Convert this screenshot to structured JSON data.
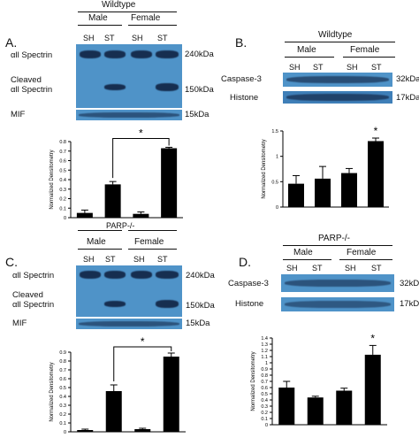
{
  "panels": [
    {
      "id": "A",
      "letter": "A.",
      "title": "Wildtype",
      "groups": [
        "Male",
        "Female"
      ],
      "lanes": [
        "SH",
        "ST",
        "SH",
        "ST"
      ],
      "blot_rows": [
        {
          "label": "αll Spectrin",
          "size": "240kDa"
        },
        {
          "label": "Cleaved\nαll Spectrin",
          "size": "150kDa"
        },
        {
          "label": "MIF",
          "size": "15kDa"
        }
      ],
      "chart_data": {
        "type": "bar",
        "categories": [
          "Male SH",
          "Male ST",
          "Female SH",
          "Female ST"
        ],
        "values": [
          0.05,
          0.35,
          0.04,
          0.73
        ],
        "errors": [
          0.03,
          0.03,
          0.02,
          0.01
        ],
        "ylabel": "Normalized Densitometry",
        "ylim": [
          0,
          0.8
        ],
        "yticks": [
          "0",
          "0.1",
          "0.2",
          "0.3",
          "0.4",
          "0.5",
          "0.6",
          "0.7",
          "0.8"
        ],
        "significance": "*"
      }
    },
    {
      "id": "B",
      "letter": "B.",
      "title": "Wildtype",
      "groups": [
        "Male",
        "Female"
      ],
      "lanes": [
        "SH",
        "ST",
        "SH",
        "ST"
      ],
      "blot_rows": [
        {
          "label": "Caspase-3",
          "size": "32kDa"
        },
        {
          "label": "Histone",
          "size": "17kDa"
        }
      ],
      "chart_data": {
        "type": "bar",
        "categories": [
          "Male SH",
          "Male ST",
          "Female SH",
          "Female ST"
        ],
        "values": [
          0.46,
          0.56,
          0.67,
          1.3
        ],
        "errors": [
          0.16,
          0.24,
          0.09,
          0.06
        ],
        "ylabel": "Normalized Densitometry",
        "ylim": [
          0,
          1.5
        ],
        "yticks": [
          "0",
          "0.5",
          "1",
          "1.5"
        ],
        "significance": "*"
      }
    },
    {
      "id": "C",
      "letter": "C.",
      "title": "PARP-/-",
      "groups": [
        "Male",
        "Female"
      ],
      "lanes": [
        "SH",
        "ST",
        "SH",
        "ST"
      ],
      "blot_rows": [
        {
          "label": "αll Spectrin",
          "size": "240kDa"
        },
        {
          "label": "Cleaved\nαll Spectrin",
          "size": "150kDa"
        },
        {
          "label": "MIF",
          "size": "15kDa"
        }
      ],
      "chart_data": {
        "type": "bar",
        "categories": [
          "Male SH",
          "Male ST",
          "Female SH",
          "Female ST"
        ],
        "values": [
          0.02,
          0.46,
          0.03,
          0.85
        ],
        "errors": [
          0.01,
          0.07,
          0.01,
          0.04
        ],
        "ylabel": "Normalized Densitometry",
        "ylim": [
          0,
          0.9
        ],
        "yticks": [
          "0",
          "0.1",
          "0.2",
          "0.3",
          "0.4",
          "0.5",
          "0.6",
          "0.7",
          "0.8",
          "0.9"
        ],
        "significance": "*"
      }
    },
    {
      "id": "D",
      "letter": "D.",
      "title": "PARP-/-",
      "groups": [
        "Male",
        "Female"
      ],
      "lanes": [
        "SH",
        "ST",
        "SH",
        "ST"
      ],
      "blot_rows": [
        {
          "label": "Caspase-3",
          "size": "32kDa"
        },
        {
          "label": "Histone",
          "size": "17kDa"
        }
      ],
      "chart_data": {
        "type": "bar",
        "categories": [
          "Male SH",
          "Male ST",
          "Female SH",
          "Female ST"
        ],
        "values": [
          0.6,
          0.44,
          0.55,
          1.13
        ],
        "errors": [
          0.1,
          0.02,
          0.04,
          0.15
        ],
        "ylabel": "Normalized Densitometry",
        "ylim": [
          0,
          1.4
        ],
        "yticks": [
          "0",
          "0.1",
          "0.2",
          "0.3",
          "0.4",
          "0.5",
          "0.6",
          "0.7",
          "0.8",
          "0.9",
          "1",
          "1.1",
          "1.2",
          "1.3",
          "1.4"
        ],
        "significance": "*"
      }
    }
  ],
  "colors": {
    "blot": "#4f93c8",
    "band": "#14294a",
    "bar": "#000000"
  }
}
